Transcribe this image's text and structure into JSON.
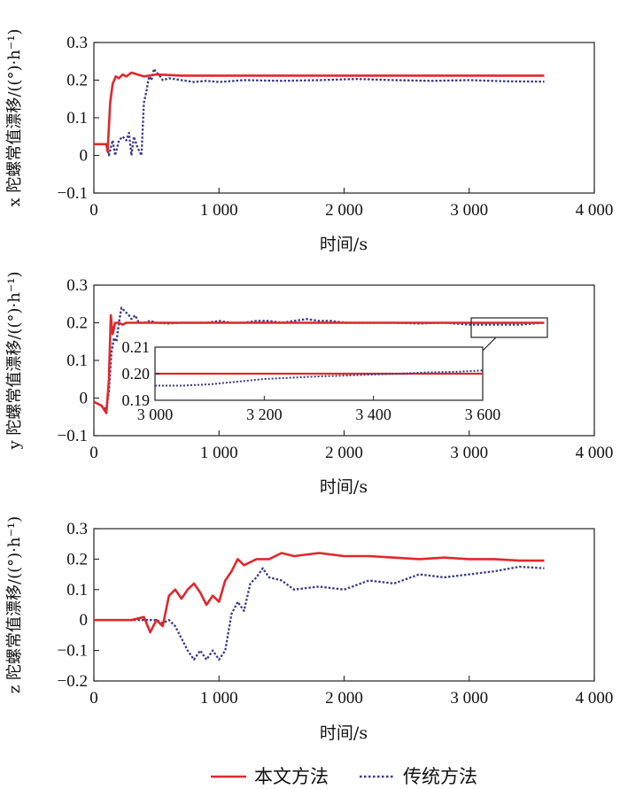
{
  "colors": {
    "proposed": "#e0282c",
    "traditional": "#3a3a8c",
    "axis": "#222222"
  },
  "legend": {
    "proposed": "本文方法",
    "traditional": "传统方法",
    "placement": "bottom"
  },
  "chart_data": [
    {
      "type": "line",
      "ylabel": "x 陀螺常值漂移/((°)·h⁻¹)",
      "xlabel": "时间/s",
      "xlim": [
        0,
        4000
      ],
      "ylim": [
        -0.1,
        0.3
      ],
      "xticks": [
        0,
        1000,
        2000,
        3000,
        4000
      ],
      "xtick_labels": [
        "0",
        "1 000",
        "2 000",
        "3 000",
        "4 000"
      ],
      "yticks": [
        -0.1,
        0,
        0.1,
        0.2,
        0.3
      ],
      "ytick_labels": [
        "−0.1",
        "0",
        "0.1",
        "0.2",
        "0.3"
      ],
      "series": [
        {
          "name": "本文方法",
          "style": "solid",
          "x": [
            0,
            100,
            110,
            130,
            150,
            175,
            200,
            230,
            260,
            300,
            350,
            400,
            500,
            700,
            1000,
            2000,
            3000,
            3600
          ],
          "y": [
            0.03,
            0.03,
            0.01,
            0.14,
            0.19,
            0.21,
            0.205,
            0.215,
            0.21,
            0.22,
            0.215,
            0.21,
            0.215,
            0.212,
            0.212,
            0.212,
            0.212,
            0.212
          ]
        },
        {
          "name": "传统方法",
          "style": "dotted",
          "x": [
            0,
            100,
            120,
            150,
            170,
            200,
            230,
            260,
            280,
            300,
            320,
            350,
            380,
            400,
            420,
            440,
            460,
            480,
            500,
            520,
            550,
            600,
            700,
            800,
            900,
            1000,
            1200,
            1500,
            1800,
            2100,
            2400,
            2700,
            3000,
            3300,
            3600
          ],
          "y": [
            0.03,
            0.03,
            0.0,
            0.04,
            0.0,
            0.04,
            0.05,
            0.04,
            0.06,
            0.0,
            0.05,
            0.02,
            0.0,
            0.14,
            0.17,
            0.21,
            0.2,
            0.23,
            0.22,
            0.215,
            0.2,
            0.205,
            0.2,
            0.195,
            0.198,
            0.195,
            0.2,
            0.198,
            0.2,
            0.203,
            0.2,
            0.198,
            0.2,
            0.197,
            0.196
          ]
        }
      ]
    },
    {
      "type": "line",
      "ylabel": "y 陀螺常值漂移/((°)·h⁻¹)",
      "xlabel": "时间/s",
      "xlim": [
        0,
        4000
      ],
      "ylim": [
        -0.1,
        0.3
      ],
      "xticks": [
        0,
        1000,
        2000,
        3000,
        4000
      ],
      "xtick_labels": [
        "0",
        "1 000",
        "2 000",
        "3 000",
        "4 000"
      ],
      "yticks": [
        -0.1,
        0,
        0.1,
        0.2,
        0.3
      ],
      "ytick_labels": [
        "−0.1",
        "0",
        "0.1",
        "0.2",
        "0.3"
      ],
      "series": [
        {
          "name": "本文方法",
          "style": "solid",
          "x": [
            0,
            60,
            100,
            120,
            135,
            150,
            170,
            200,
            230,
            260,
            300,
            400,
            600,
            1000,
            2000,
            3000,
            3600
          ],
          "y": [
            -0.01,
            -0.02,
            -0.04,
            0.05,
            0.22,
            0.17,
            0.2,
            0.2,
            0.195,
            0.2,
            0.2,
            0.2,
            0.2,
            0.2,
            0.2,
            0.2,
            0.2
          ]
        },
        {
          "name": "传统方法",
          "style": "dotted",
          "x": [
            0,
            60,
            100,
            120,
            140,
            160,
            180,
            200,
            220,
            250,
            280,
            300,
            330,
            360,
            400,
            450,
            500,
            600,
            700,
            800,
            900,
            1000,
            1100,
            1200,
            1300,
            1400,
            1500,
            1600,
            1700,
            1800,
            1900,
            2000,
            2200,
            2400,
            2600,
            2800,
            3000,
            3200,
            3400,
            3600
          ],
          "y": [
            -0.01,
            -0.02,
            -0.03,
            0.02,
            0.12,
            0.16,
            0.15,
            0.2,
            0.24,
            0.23,
            0.22,
            0.21,
            0.22,
            0.2,
            0.2,
            0.205,
            0.2,
            0.198,
            0.2,
            0.2,
            0.2,
            0.205,
            0.2,
            0.2,
            0.205,
            0.205,
            0.2,
            0.205,
            0.21,
            0.205,
            0.205,
            0.2,
            0.2,
            0.2,
            0.198,
            0.2,
            0.195,
            0.195,
            0.195,
            0.2
          ]
        }
      ],
      "inset": {
        "xlim": [
          3000,
          3600
        ],
        "ylim": [
          0.19,
          0.21
        ],
        "xticks": [
          3000,
          3200,
          3400,
          3600
        ],
        "xtick_labels": [
          "3 000",
          "3 200",
          "3 400",
          "3 600"
        ],
        "yticks": [
          0.19,
          0.2,
          0.21
        ],
        "ytick_labels": [
          "0.19",
          "0.20",
          "0.21"
        ],
        "series": [
          {
            "name": "本文方法",
            "style": "solid",
            "x": [
              3000,
              3100,
              3200,
              3300,
              3400,
              3500,
              3600
            ],
            "y": [
              0.2,
              0.2,
              0.2,
              0.2,
              0.2,
              0.2,
              0.2
            ]
          },
          {
            "name": "传统方法",
            "style": "dotted",
            "x": [
              3000,
              3050,
              3100,
              3150,
              3200,
              3250,
              3300,
              3350,
              3400,
              3450,
              3500,
              3550,
              3600
            ],
            "y": [
              0.1955,
              0.1955,
              0.196,
              0.197,
              0.198,
              0.1985,
              0.199,
              0.1993,
              0.1997,
              0.2,
              0.2005,
              0.2007,
              0.2012
            ]
          }
        ]
      }
    },
    {
      "type": "line",
      "ylabel": "z 陀螺常值漂移/((°)·h⁻¹)",
      "xlabel": "时间/s",
      "xlim": [
        0,
        4000
      ],
      "ylim": [
        -0.2,
        0.3
      ],
      "xticks": [
        0,
        1000,
        2000,
        3000,
        4000
      ],
      "xtick_labels": [
        "0",
        "1 000",
        "2 000",
        "3 000",
        "4 000"
      ],
      "yticks": [
        -0.2,
        -0.1,
        0,
        0.1,
        0.2,
        0.3
      ],
      "ytick_labels": [
        "−0.2",
        "−0.1",
        "0",
        "0.1",
        "0.2",
        "0.3"
      ],
      "series": [
        {
          "name": "本文方法",
          "style": "solid",
          "x": [
            0,
            300,
            400,
            450,
            500,
            550,
            600,
            650,
            700,
            750,
            800,
            850,
            900,
            950,
            1000,
            1050,
            1100,
            1150,
            1200,
            1300,
            1400,
            1500,
            1600,
            1800,
            2000,
            2200,
            2400,
            2600,
            2800,
            3000,
            3200,
            3400,
            3600
          ],
          "y": [
            0.0,
            0.0,
            0.01,
            -0.04,
            0.0,
            -0.02,
            0.08,
            0.1,
            0.07,
            0.1,
            0.12,
            0.09,
            0.05,
            0.08,
            0.06,
            0.13,
            0.16,
            0.2,
            0.18,
            0.2,
            0.2,
            0.22,
            0.21,
            0.22,
            0.21,
            0.21,
            0.205,
            0.2,
            0.205,
            0.2,
            0.2,
            0.195,
            0.195
          ]
        },
        {
          "name": "传统方法",
          "style": "dotted",
          "x": [
            0,
            300,
            400,
            500,
            550,
            600,
            650,
            700,
            750,
            800,
            850,
            900,
            950,
            1000,
            1050,
            1100,
            1150,
            1200,
            1250,
            1300,
            1350,
            1400,
            1500,
            1600,
            1800,
            2000,
            2200,
            2400,
            2600,
            2800,
            3000,
            3200,
            3400,
            3600
          ],
          "y": [
            0.0,
            0.0,
            0.0,
            0.0,
            -0.01,
            0.0,
            -0.02,
            -0.06,
            -0.1,
            -0.13,
            -0.1,
            -0.13,
            -0.1,
            -0.13,
            -0.1,
            0.02,
            0.06,
            0.03,
            0.12,
            0.14,
            0.17,
            0.14,
            0.13,
            0.1,
            0.11,
            0.1,
            0.13,
            0.12,
            0.15,
            0.14,
            0.15,
            0.16,
            0.175,
            0.17
          ]
        }
      ]
    }
  ]
}
